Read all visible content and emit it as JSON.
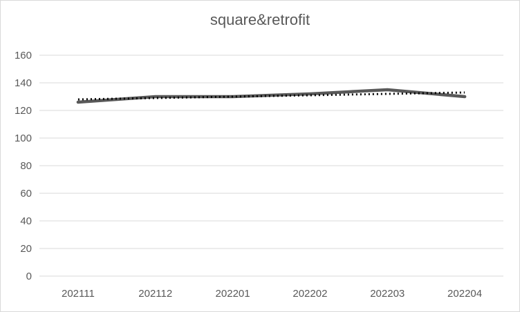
{
  "chart_data": {
    "type": "line",
    "title": "square&retrofit",
    "xlabel": "",
    "ylabel": "",
    "categories": [
      "202111",
      "202112",
      "202201",
      "202202",
      "202203",
      "202204"
    ],
    "series": [
      {
        "values": [
          126,
          130,
          130,
          132,
          135,
          130
        ],
        "color": "#595959",
        "style": "solid"
      },
      {
        "values": [
          128,
          129,
          130,
          131,
          132,
          133
        ],
        "color": "#000000",
        "style": "dotted"
      }
    ],
    "ylim": [
      0,
      160
    ],
    "yticks": [
      0,
      20,
      40,
      60,
      80,
      100,
      120,
      140,
      160
    ],
    "grid": true,
    "legend": "none"
  }
}
